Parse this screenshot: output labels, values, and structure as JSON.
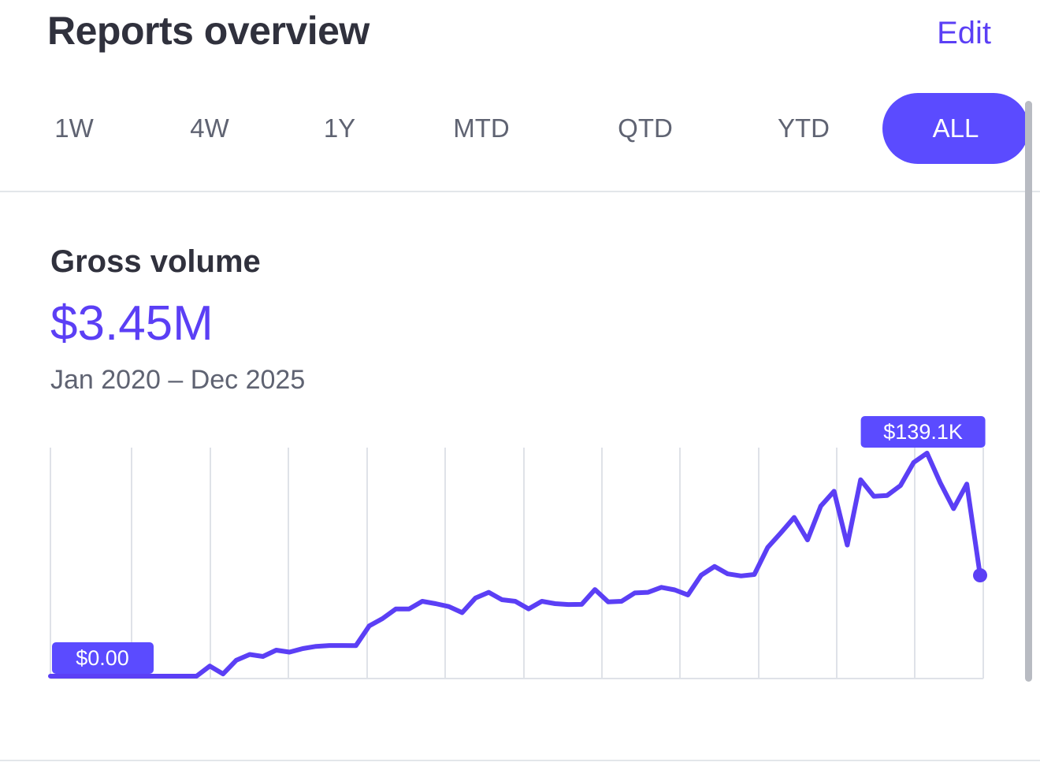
{
  "header": {
    "title": "Reports overview",
    "edit_label": "Edit"
  },
  "tabs": [
    {
      "label": "1W",
      "active": false
    },
    {
      "label": "4W",
      "active": false
    },
    {
      "label": "1Y",
      "active": false
    },
    {
      "label": "MTD",
      "active": false
    },
    {
      "label": "QTD",
      "active": false
    },
    {
      "label": "YTD",
      "active": false
    },
    {
      "label": "ALL",
      "active": true
    }
  ],
  "metric": {
    "label": "Gross volume",
    "value": "$3.45M",
    "range": "Jan 2020 – Dec 2025"
  },
  "colors": {
    "accent": "#5b3ff5",
    "active_tab": "#5b4bff",
    "line": "#5b3ff5",
    "grid": "#dfe2e8"
  },
  "chart_data": {
    "type": "line",
    "y_max_label": "$139.1K",
    "y_min_label": "$0.00",
    "ylim": [
      0,
      139.1
    ],
    "grid": true,
    "series": [
      {
        "values": [
          0,
          0,
          0,
          0,
          0,
          0,
          0,
          0,
          0,
          0,
          0,
          0,
          6.3,
          1.4,
          10,
          13.5,
          12.3,
          16.2,
          15,
          17.2,
          18.6,
          19.1,
          19.1,
          19,
          31.3,
          35.9,
          41.9,
          41.9,
          46.7,
          45.2,
          43.4,
          39.6,
          48.7,
          52.3,
          47.7,
          46.7,
          42,
          46.7,
          45.2,
          44.7,
          44.8,
          54,
          46.3,
          46.7,
          51.9,
          52.3,
          55.4,
          53.8,
          50.7,
          63,
          68.4,
          63.8,
          62.5,
          63.4,
          80.2,
          89.4,
          99,
          85,
          106,
          115.3,
          81.8,
          122.5,
          112.2,
          112.7,
          118.9,
          133.3,
          139.1,
          120.6,
          104.5,
          119.8,
          62.9
        ]
      }
    ]
  }
}
